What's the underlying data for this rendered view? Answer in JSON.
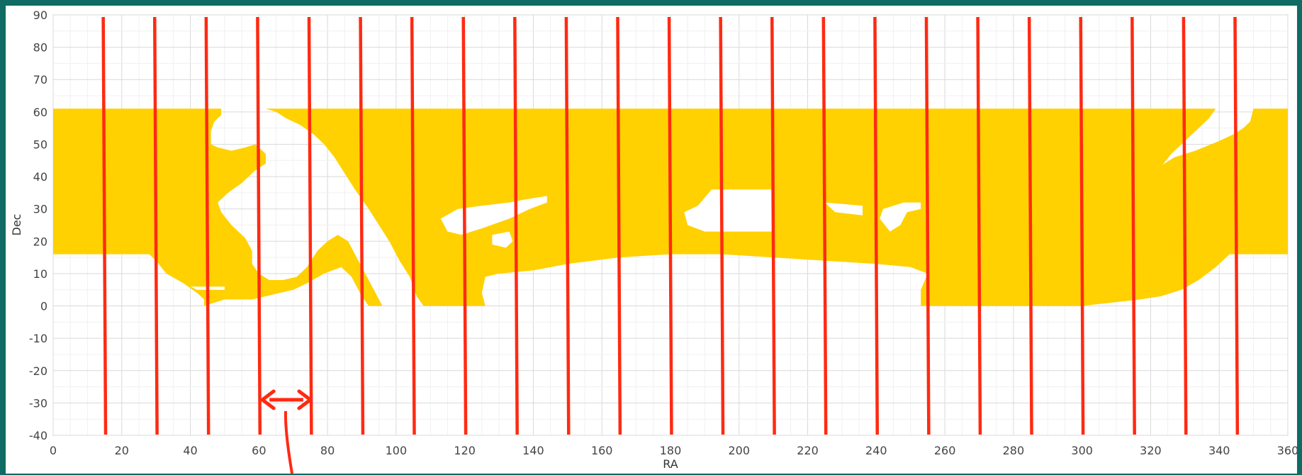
{
  "chart_data": {
    "type": "area",
    "xlabel": "RA",
    "ylabel": "Dec",
    "xlim": [
      0,
      360
    ],
    "ylim": [
      -40,
      90
    ],
    "x_ticks": [
      "0",
      "20",
      "40",
      "60",
      "80",
      "100",
      "120",
      "140",
      "160",
      "180",
      "200",
      "220",
      "240",
      "260",
      "280",
      "300",
      "320",
      "340",
      "360"
    ],
    "y_ticks": [
      "90",
      "80",
      "70",
      "60",
      "50",
      "40",
      "30",
      "20",
      "10",
      "0",
      "-10",
      "-20",
      "-30",
      "-40"
    ],
    "x_tick_values": [
      0,
      20,
      40,
      60,
      80,
      100,
      120,
      140,
      160,
      180,
      200,
      220,
      240,
      260,
      280,
      300,
      320,
      340,
      360
    ],
    "y_tick_values": [
      90,
      80,
      70,
      60,
      50,
      40,
      30,
      20,
      10,
      0,
      -10,
      -20,
      -30,
      -40
    ],
    "grid": true,
    "band": {
      "color": "#ffd100",
      "dec_max": 61,
      "dec_min": 0
    },
    "stripe_boundaries": [
      15,
      30,
      45,
      60,
      75,
      90,
      105,
      120,
      135,
      150,
      165,
      180,
      195,
      210,
      225,
      240,
      255,
      270,
      285,
      300,
      315,
      330,
      345
    ],
    "stripe_color": "#ff2a12",
    "annotation": {
      "type": "double-arrow",
      "from_ra": 61,
      "to_ra": 75,
      "dec": -29
    }
  }
}
